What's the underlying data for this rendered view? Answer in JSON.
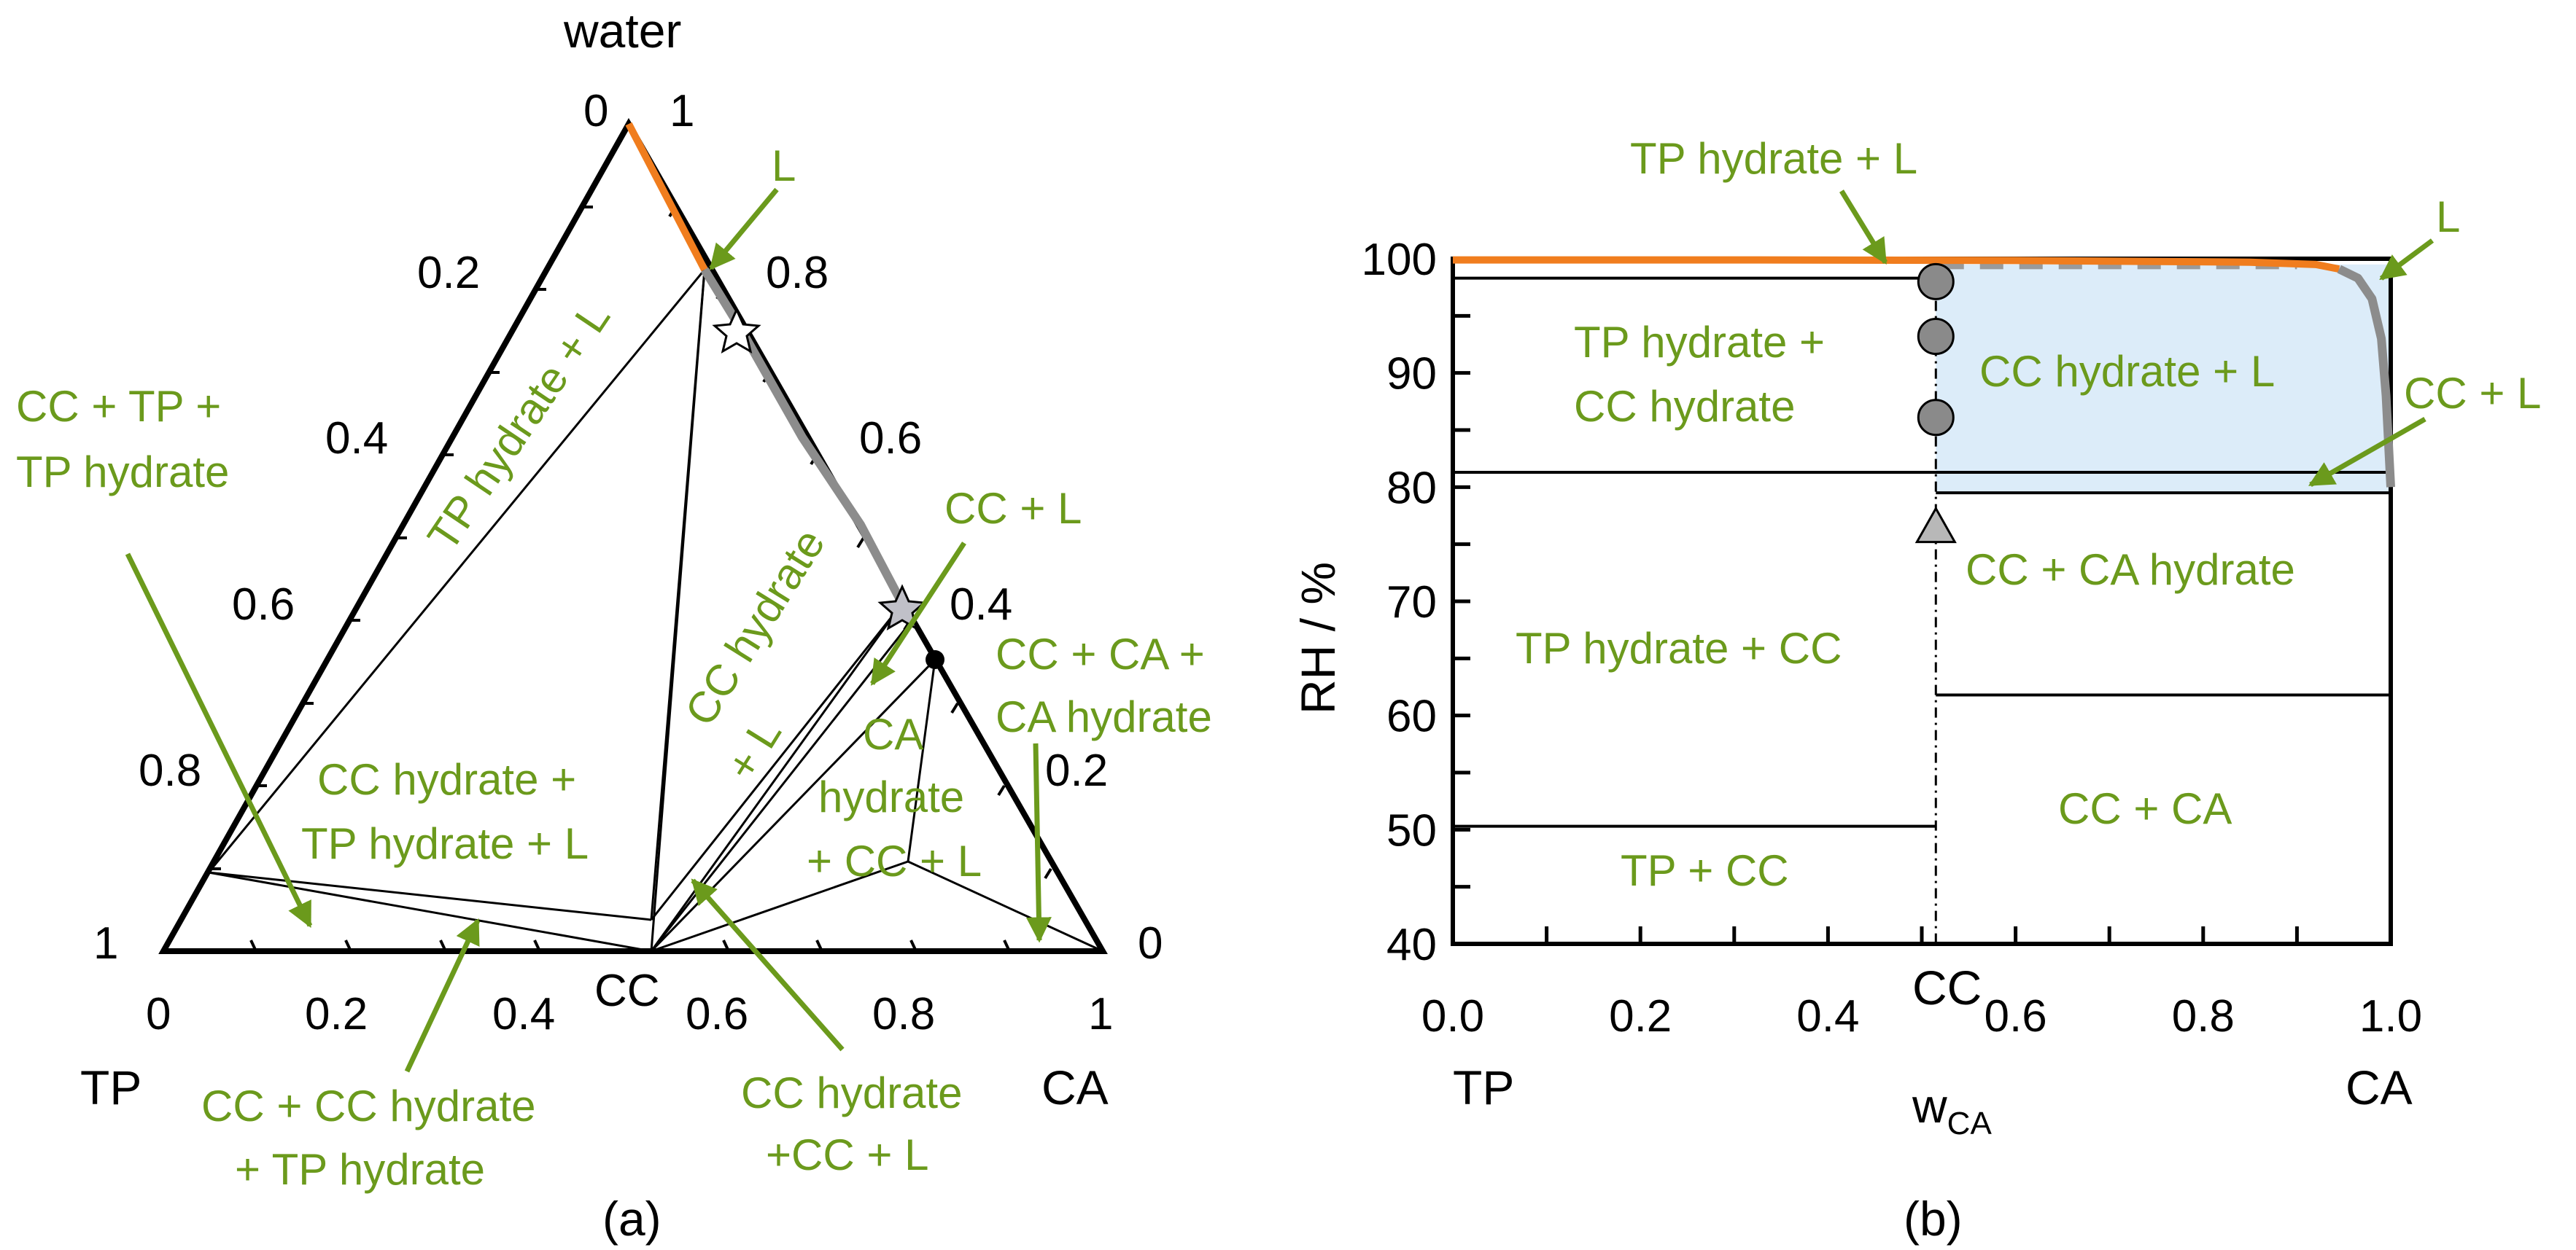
{
  "panel_a": {
    "label": "(a)",
    "vertex_water": "water",
    "vertex_tp": "TP",
    "vertex_ca": "CA",
    "vertex_cc": "CC",
    "left_ticks": [
      "0",
      "0.2",
      "0.4",
      "0.6",
      "0.8",
      "1"
    ],
    "right_ticks": [
      "1",
      "0.8",
      "0.6",
      "0.4",
      "0.2",
      "0"
    ],
    "bottom_ticks": [
      "0",
      "0.2",
      "0.4",
      "0.6",
      "0.8",
      "1"
    ],
    "regions": {
      "l": "L",
      "tp_hydrate_l": "TP hydrate + L",
      "cc_hydrate_l_1": "CC hydrate",
      "cc_hydrate_l_2": "+ L",
      "cc_l": "CC + L",
      "cc_tp_tph_1": "CC + TP +",
      "cc_tp_tph_2": "TP hydrate",
      "cch_tph_l_1": "CC hydrate +",
      "cch_tph_l_2": "TP hydrate + L",
      "ca_h_cc_l_1": "CA",
      "ca_h_cc_l_2": "hydrate",
      "ca_h_cc_l_3": "+ CC + L",
      "cc_ca_cah_1": "CC + CA +",
      "cc_ca_cah_2": "CA hydrate",
      "cc_cch_tph_1": "CC + CC hydrate",
      "cc_cch_tph_2": "+ TP hydrate",
      "cch_cc_l_1": "CC hydrate",
      "cch_cc_l_2": "+CC + L"
    }
  },
  "panel_b": {
    "label": "(b)",
    "ylabel": "RH / %",
    "xlabel_main": "w",
    "xlabel_sub": "CA",
    "x_left_label": "TP",
    "x_right_label": "CA",
    "cc_label": "CC",
    "regions": {
      "tph_l": "TP hydrate + L",
      "l": "L",
      "tph_cch_1": "TP hydrate +",
      "tph_cch_2": "CC hydrate",
      "cch_l": "CC hydrate + L",
      "cc_l": "CC + L",
      "cc_cah": "CC + CA hydrate",
      "tph_cc": "TP hydrate + CC",
      "cc_ca": "CC + CA",
      "tp_cc": "TP + CC"
    }
  },
  "colors": {
    "green": "#6b9a1c",
    "orange": "#f07d1e",
    "gray": "#8c8c8c",
    "blue_fill": "#dcecf9"
  },
  "chart_data": {
    "type": "line",
    "title": "",
    "xlabel": "wCA",
    "ylabel": "RH / %",
    "xlim": [
      0,
      1
    ],
    "ylim": [
      40,
      100
    ],
    "x_ticks": [
      "0.0",
      "0.2",
      "0.4",
      "0.6",
      "0.8",
      "1.0"
    ],
    "y_ticks": [
      "40",
      "50",
      "60",
      "70",
      "80",
      "90",
      "100"
    ],
    "cc_composition": 0.515,
    "boundaries": [
      {
        "name": "TP + CC / TP hydrate + CC",
        "x_range": [
          0,
          0.515
        ],
        "rh": 50.3
      },
      {
        "name": "TP hydrate + CC / TP hydrate + CC hydrate",
        "x_range": [
          0,
          1
        ],
        "rh": 81.3
      },
      {
        "name": "TP hydrate + CC hydrate / TP hydrate + L",
        "x_range": [
          0,
          0.515
        ],
        "rh": 98.3
      },
      {
        "name": "CC + CA / CC + CA hydrate",
        "x_range": [
          0.515,
          1
        ],
        "rh": 61.8
      },
      {
        "name": "CC + CA hydrate / CC + L",
        "x_range": [
          0.515,
          1
        ],
        "rh": 79.5
      }
    ],
    "series": [
      {
        "name": "liquidus (orange)",
        "x": [
          0,
          0.3,
          0.6,
          0.85,
          0.92,
          0.945
        ],
        "y": [
          99.9,
          99.9,
          99.85,
          99.7,
          99.5,
          99.1
        ]
      },
      {
        "name": "liquidus (gray)",
        "x": [
          0.945,
          0.965,
          0.98,
          0.99,
          0.995,
          1.0
        ],
        "y": [
          99.1,
          98.3,
          96.5,
          93.0,
          88.0,
          80.0
        ]
      },
      {
        "name": "dashed (gray)",
        "x": [
          0.52,
          0.9
        ],
        "y": [
          99.4,
          99.4
        ]
      },
      {
        "name": "measured (circles)",
        "x": [
          0.515,
          0.515,
          0.515
        ],
        "y": [
          98.0,
          93.2,
          86.1
        ]
      },
      {
        "name": "measured (triangle)",
        "x": [
          0.515
        ],
        "y": [
          76.6
        ]
      }
    ]
  }
}
